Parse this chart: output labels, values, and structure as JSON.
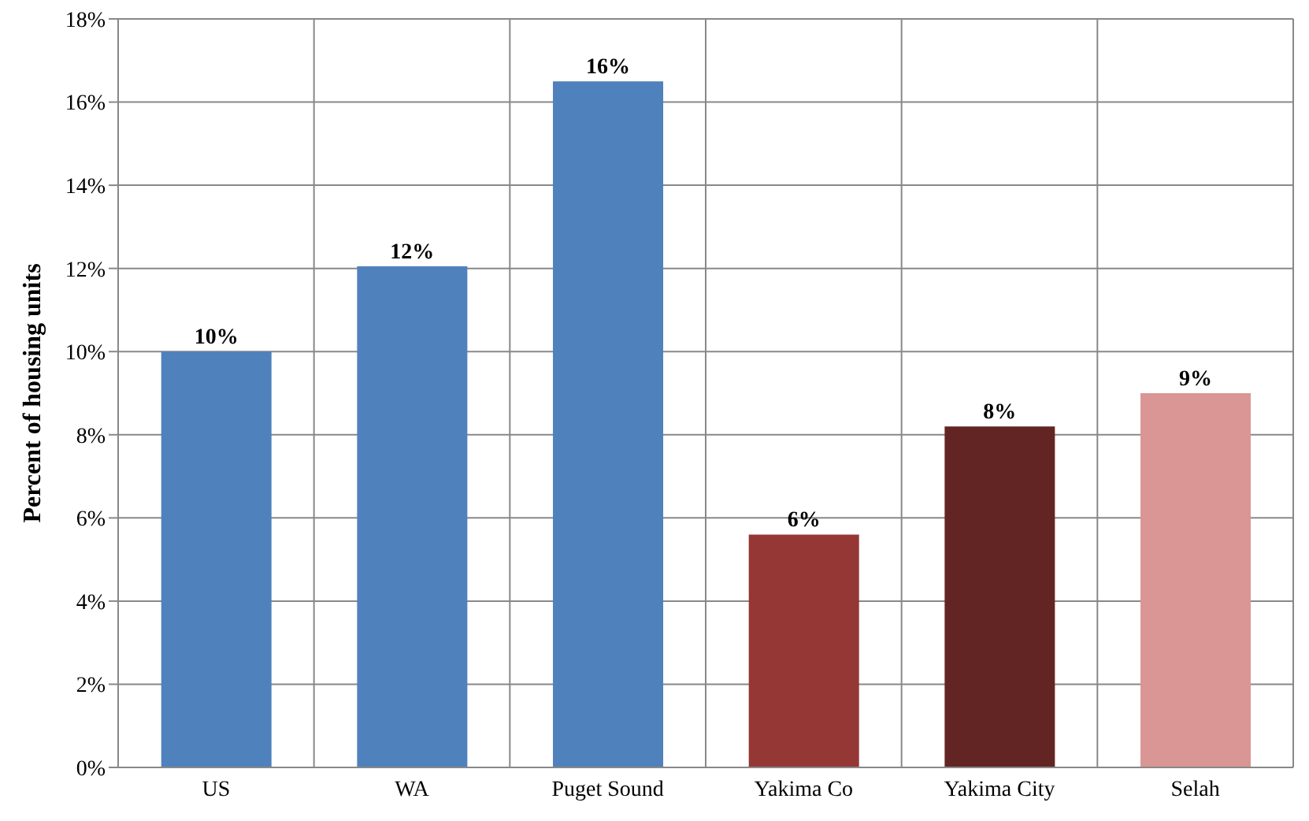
{
  "chart_data": {
    "type": "bar",
    "ylabel": "Percent of housing units",
    "categories": [
      "US",
      "WA",
      "Puget Sound",
      "Yakima Co",
      "Yakima City",
      "Selah"
    ],
    "values": [
      10,
      12.05,
      16.5,
      5.6,
      8.2,
      9.0
    ],
    "colors": [
      "#4f81bd",
      "#4f81bd",
      "#4f81bd",
      "#953735",
      "#632523",
      "#d99694"
    ],
    "value_labels": [
      "10%",
      "12%",
      "16%",
      "6%",
      "8%",
      "9%"
    ],
    "ylim": [
      0,
      18
    ],
    "yticks": [
      {
        "value": 0,
        "label": "0%"
      },
      {
        "value": 2,
        "label": "2%"
      },
      {
        "value": 4,
        "label": "4%"
      },
      {
        "value": 6,
        "label": "6%"
      },
      {
        "value": 8,
        "label": "8%"
      },
      {
        "value": 10,
        "label": "10%"
      },
      {
        "value": 12,
        "label": "12%"
      },
      {
        "value": 14,
        "label": "14%"
      },
      {
        "value": 16,
        "label": "16%"
      },
      {
        "value": 18,
        "label": "18%"
      }
    ],
    "grid": true
  }
}
